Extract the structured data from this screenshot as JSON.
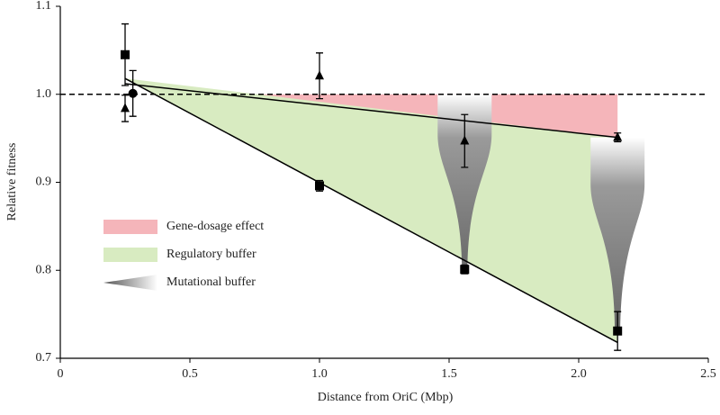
{
  "chart_data": {
    "type": "scatter",
    "xlabel": "Distance from OriC (Mbp)",
    "ylabel": "Relative fitness",
    "xlim": [
      0,
      2.5
    ],
    "ylim": [
      0.7,
      1.1
    ],
    "xticks": [
      0,
      0.5,
      {
        "value": 1,
        "label": "1.0"
      },
      1.5,
      {
        "value": 2,
        "label": "2.0"
      },
      2.5
    ],
    "yticks": [
      0.7,
      0.8,
      0.9,
      {
        "value": 1,
        "label": "1.0"
      },
      1.1
    ],
    "reference_line": 1.0,
    "series": [
      {
        "marker": "square",
        "color": "#000000",
        "x": [
          0.25,
          1.0,
          1.56,
          2.15
        ],
        "values": [
          1.045,
          0.896,
          0.801,
          0.731
        ],
        "errors": [
          0.035,
          0.006,
          0.005,
          0.022
        ]
      },
      {
        "marker": "triangle",
        "color": "#000000",
        "x": [
          0.25,
          1.0,
          1.56,
          2.15
        ],
        "values": [
          0.984,
          1.021,
          0.947,
          0.951
        ],
        "errors": [
          0.015,
          0.026,
          0.03,
          0.005
        ]
      },
      {
        "marker": "circle",
        "color": "#000000",
        "x": [
          0.28
        ],
        "values": [
          1.001
        ],
        "errors": [
          0.026
        ]
      }
    ],
    "fit_lines": [
      {
        "x": [
          0.25,
          2.15
        ],
        "values": [
          1.018,
          0.718
        ],
        "color": "#000000"
      },
      {
        "x": [
          0.25,
          2.15
        ],
        "values": [
          1.012,
          0.951
        ],
        "color": "#000000"
      }
    ],
    "legend": [
      {
        "name": "Gene-dosage effect",
        "color": "#f5b5ba"
      },
      {
        "name": "Regulatory buffer",
        "color": "#d8ebc1"
      },
      {
        "name": "Mutational buffer",
        "color": "#808080"
      }
    ]
  }
}
